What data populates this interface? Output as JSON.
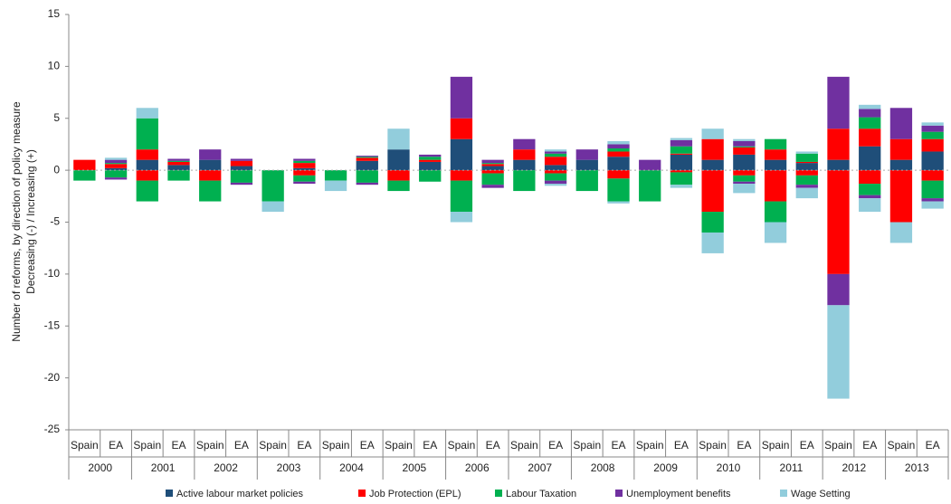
{
  "chart_data": {
    "type": "diverging_stacked_bar",
    "y_label": [
      "Number of reforms, by direction of policy measure",
      "Decreasing (-)   /   Increasing (+)"
    ],
    "categories": [
      "Spain",
      "EA",
      "Spain",
      "EA",
      "Spain",
      "EA",
      "Spain",
      "EA",
      "Spain",
      "EA",
      "Spain",
      "EA",
      "Spain",
      "EA",
      "Spain",
      "EA",
      "Spain",
      "EA",
      "Spain",
      "EA",
      "Spain",
      "EA",
      "Spain",
      "EA",
      "Spain",
      "EA",
      "Spain",
      "EA"
    ],
    "groups": [
      "2000",
      "2001",
      "2002",
      "2003",
      "2004",
      "2005",
      "2006",
      "2007",
      "2008",
      "2009",
      "2010",
      "2011",
      "2012",
      "2013"
    ],
    "ylim": [
      -25,
      15
    ],
    "yticks": [
      -25,
      -20,
      -15,
      -10,
      -5,
      0,
      5,
      10,
      15
    ],
    "series": [
      {
        "name": "Active labour market policies",
        "color": "#1f4e79",
        "increasing": [
          0,
          0.2,
          1,
          0.5,
          1,
          0.4,
          0,
          0.2,
          0,
          0.9,
          2,
          0.8,
          3,
          0.4,
          1,
          0.5,
          1,
          1.3,
          0,
          1.5,
          1,
          1.5,
          1,
          0.7,
          1,
          2.3,
          1,
          1.8
        ],
        "decreasing": [
          0,
          0,
          0,
          0,
          0,
          0,
          0,
          0,
          0,
          0,
          0,
          0,
          0,
          0,
          0,
          0,
          0,
          0,
          0,
          0,
          0,
          0,
          0,
          0,
          0,
          0,
          0,
          0
        ]
      },
      {
        "name": "Job Protection (EPL)",
        "color": "#ff0000",
        "increasing": [
          1,
          0.4,
          1,
          0.3,
          0,
          0.5,
          0,
          0.5,
          0,
          0.3,
          0,
          0.2,
          2,
          0.2,
          1,
          0.8,
          0,
          0.5,
          0,
          0.1,
          2,
          0.7,
          1,
          0.1,
          3,
          1.7,
          2,
          1.2
        ],
        "decreasing": [
          0,
          0,
          -1,
          0,
          -1,
          0,
          0,
          -0.5,
          0,
          0,
          -1,
          0,
          -1,
          -0.3,
          0,
          -0.3,
          0,
          -0.8,
          0,
          -0.2,
          -4,
          -0.5,
          -3,
          -0.5,
          -10,
          -1.3,
          -5,
          -1.0
        ]
      },
      {
        "name": "Labour Taxation",
        "color": "#00b050",
        "increasing": [
          0,
          0.1,
          3,
          0.1,
          0,
          0,
          0,
          0.2,
          0,
          0.1,
          0,
          0.3,
          0,
          0.1,
          0,
          0.3,
          0,
          0.3,
          0,
          0.7,
          0,
          0.1,
          1,
          0.8,
          0,
          1.1,
          0,
          0.7
        ],
        "decreasing": [
          -1,
          -0.7,
          -2,
          -1,
          -2,
          -1.2,
          -3,
          -0.6,
          -1,
          -1.2,
          -1,
          -1.1,
          -3,
          -1.1,
          -2,
          -0.7,
          -2,
          -2.2,
          -3,
          -1.2,
          -2,
          -0.6,
          -2,
          -0.9,
          0,
          -1.1,
          0,
          -1.7
        ]
      },
      {
        "name": "Unemployment benefits",
        "color": "#7030a0",
        "increasing": [
          0,
          0.3,
          0,
          0.2,
          1,
          0.2,
          0,
          0.2,
          0,
          0.1,
          0,
          0.2,
          4,
          0.3,
          1,
          0.2,
          1,
          0.4,
          1,
          0.6,
          0,
          0.5,
          0,
          0,
          5,
          0.8,
          3,
          0.6
        ],
        "decreasing": [
          0,
          -0.2,
          0,
          0,
          0,
          -0.2,
          0,
          -0.2,
          0,
          -0.2,
          0,
          0,
          0,
          -0.3,
          0,
          -0.3,
          0,
          0,
          0,
          0,
          0,
          -0.2,
          0,
          -0.3,
          -3,
          -0.3,
          0,
          -0.3
        ]
      },
      {
        "name": "Wage Setting",
        "color": "#92cddc",
        "increasing": [
          0,
          0.2,
          1,
          0,
          0,
          0,
          0,
          0,
          0,
          0,
          2,
          0,
          0,
          0,
          0,
          0.2,
          0,
          0.3,
          0,
          0.2,
          1,
          0.2,
          0,
          0.2,
          0,
          0.4,
          0,
          0.3
        ],
        "decreasing": [
          0,
          0,
          0,
          0,
          0,
          0,
          -1,
          0,
          -1,
          0,
          0,
          0,
          -1,
          0,
          0,
          -0.2,
          0,
          -0.2,
          0,
          -0.3,
          -2,
          -0.9,
          -2,
          -1.0,
          -9,
          -1.3,
          -2,
          -0.7
        ]
      }
    ]
  }
}
